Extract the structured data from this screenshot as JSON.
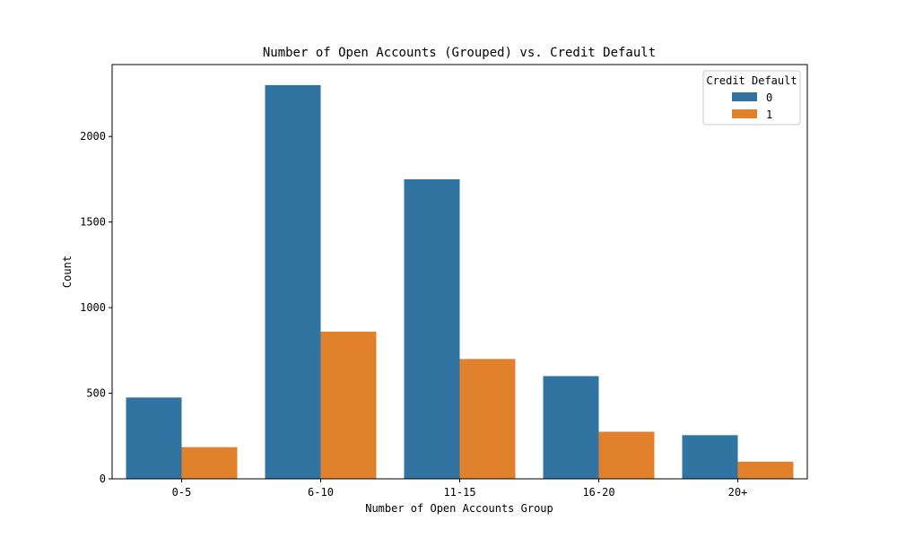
{
  "chart_data": {
    "type": "bar",
    "title": "Number of Open Accounts (Grouped) vs. Credit Default",
    "xlabel": "Number of Open Accounts Group",
    "ylabel": "Count",
    "categories": [
      "0-5",
      "6-10",
      "11-15",
      "16-20",
      "20+"
    ],
    "series": [
      {
        "name": "0",
        "color": "#3274a1",
        "values": [
          475,
          2300,
          1750,
          600,
          255
        ]
      },
      {
        "name": "1",
        "color": "#e1812c",
        "values": [
          185,
          860,
          700,
          275,
          100
        ]
      }
    ],
    "ylim": [
      0,
      2420
    ],
    "yticks": [
      0,
      500,
      1000,
      1500,
      2000
    ],
    "legend": {
      "title": "Credit Default",
      "placement": "top-right"
    },
    "grid": false
  }
}
